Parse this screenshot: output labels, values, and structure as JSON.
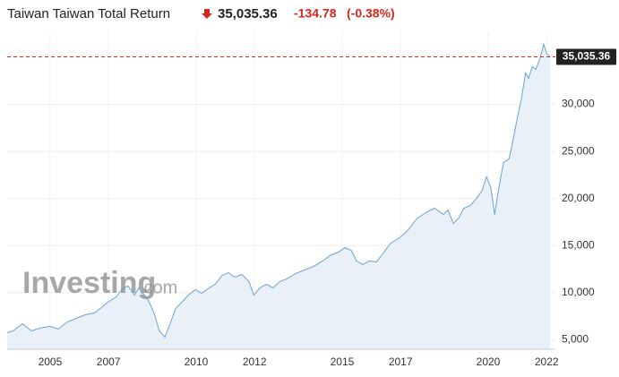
{
  "chart_data": {
    "type": "line",
    "title": "Taiwan Taiwan Total Return",
    "price": "35,035.36",
    "change": "-134.78",
    "change_pct": "(-0.38%)",
    "watermark": {
      "brand": "Investing",
      "suffix": ".com"
    },
    "current": {
      "value": 35035.36,
      "label": "35,035.36"
    },
    "color": "#6aa3d3",
    "fill": "#e9f0f8",
    "grid": true,
    "xlim": [
      2003.53,
      2022.3
    ],
    "ylim": [
      4000,
      36800
    ],
    "xticks": [
      2005,
      2007,
      2010,
      2012,
      2015,
      2017,
      2020,
      2022
    ],
    "yticks": [
      {
        "value": 5000,
        "label": "5,000"
      },
      {
        "value": 10000,
        "label": "10,000"
      },
      {
        "value": 15000,
        "label": "15,000"
      },
      {
        "value": 20000,
        "label": "20,000"
      },
      {
        "value": 25000,
        "label": "25,000"
      },
      {
        "value": 30000,
        "label": "30,000"
      }
    ],
    "x": [
      2003.53,
      2003.74,
      2004.05,
      2004.36,
      2004.66,
      2005.0,
      2005.28,
      2005.59,
      2005.89,
      2006.2,
      2006.51,
      2006.72,
      2006.97,
      2007.27,
      2007.49,
      2007.67,
      2007.89,
      2008.04,
      2008.19,
      2008.35,
      2008.56,
      2008.74,
      2008.93,
      2009.11,
      2009.3,
      2009.51,
      2009.73,
      2009.97,
      2010.19,
      2010.4,
      2010.65,
      2010.89,
      2011.11,
      2011.32,
      2011.57,
      2011.81,
      2011.97,
      2012.18,
      2012.4,
      2012.64,
      2012.86,
      2013.1,
      2013.41,
      2013.71,
      2014.02,
      2014.33,
      2014.63,
      2014.88,
      2015.09,
      2015.31,
      2015.49,
      2015.71,
      2015.92,
      2016.17,
      2016.41,
      2016.66,
      2016.97,
      2017.24,
      2017.55,
      2017.86,
      2018.16,
      2018.47,
      2018.62,
      2018.81,
      2018.99,
      2019.17,
      2019.39,
      2019.6,
      2019.79,
      2019.94,
      2020.09,
      2020.22,
      2020.34,
      2020.52,
      2020.71,
      2020.83,
      2021.01,
      2021.14,
      2021.28,
      2021.38,
      2021.51,
      2021.63,
      2021.78,
      2021.9,
      2022.0,
      2022.12
    ],
    "values": [
      5760,
      5950,
      6710,
      5950,
      6240,
      6430,
      6140,
      6900,
      7280,
      7660,
      7850,
      8330,
      8990,
      9560,
      10510,
      10700,
      9750,
      10510,
      9940,
      9280,
      7850,
      5950,
      5290,
      6710,
      8330,
      8990,
      9750,
      10320,
      9940,
      10420,
      10890,
      11840,
      12130,
      11650,
      11940,
      11180,
      9750,
      10510,
      10890,
      10510,
      11180,
      11460,
      12030,
      12410,
      12790,
      13370,
      14030,
      14320,
      14790,
      14510,
      13370,
      12990,
      13370,
      13270,
      14220,
      15270,
      15840,
      16600,
      17830,
      18500,
      18970,
      18310,
      18780,
      17360,
      17930,
      18970,
      19260,
      20020,
      20880,
      22300,
      21160,
      18310,
      20680,
      23820,
      24200,
      25910,
      28770,
      30670,
      33330,
      32760,
      33990,
      33710,
      34950,
      36370,
      35420,
      35035.36
    ]
  }
}
